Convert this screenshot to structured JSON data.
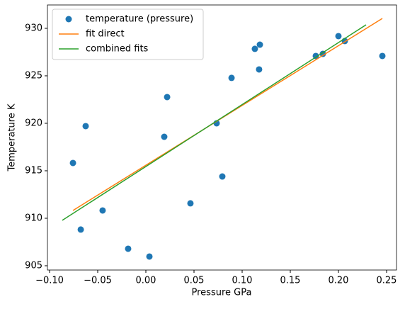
{
  "chart_data": {
    "type": "scatter",
    "xlabel": "Pressure GPa",
    "ylabel": "Temperature K",
    "xlim": [
      -0.1022,
      0.2603
    ],
    "ylim": [
      904.55,
      932.46
    ],
    "xticks": [
      {
        "value": -0.1,
        "label": "−0.10"
      },
      {
        "value": -0.05,
        "label": "−0.05"
      },
      {
        "value": 0,
        "label": "0.00"
      },
      0.05,
      {
        "value": 0.1,
        "label": "0.10"
      },
      0.15,
      {
        "value": 0.2,
        "label": "0.20"
      },
      0.25
    ],
    "yticks": [
      905,
      910,
      915,
      920,
      925,
      930
    ],
    "legend": "upper left",
    "series": [
      {
        "name": "temperature (pressure)",
        "type": "scatter",
        "color": "#1f77b4",
        "x": [
          -0.0757,
          -0.0625,
          -0.0676,
          -0.0449,
          -0.0184,
          0.0037,
          0.0191,
          0.0221,
          0.0463,
          0.0735,
          0.0794,
          0.089,
          0.1132,
          0.1184,
          0.1176,
          0.1765,
          0.1838,
          0.2,
          0.2066,
          0.2456
        ],
        "values": [
          915.82,
          919.7,
          908.81,
          910.82,
          906.79,
          905.97,
          918.58,
          922.76,
          911.57,
          920.0,
          914.4,
          924.78,
          927.84,
          928.28,
          925.67,
          927.09,
          927.31,
          929.18,
          928.66,
          927.09
        ]
      },
      {
        "name": "fit direct",
        "type": "line",
        "color": "#ff7f0e",
        "x": [
          -0.0757,
          0.2456
        ],
        "values": [
          910.82,
          931.04
        ]
      },
      {
        "name": "combined fits",
        "type": "line",
        "color": "#2ca02c",
        "x": [
          -0.0868,
          0.2287
        ],
        "values": [
          909.78,
          930.37
        ]
      }
    ]
  }
}
